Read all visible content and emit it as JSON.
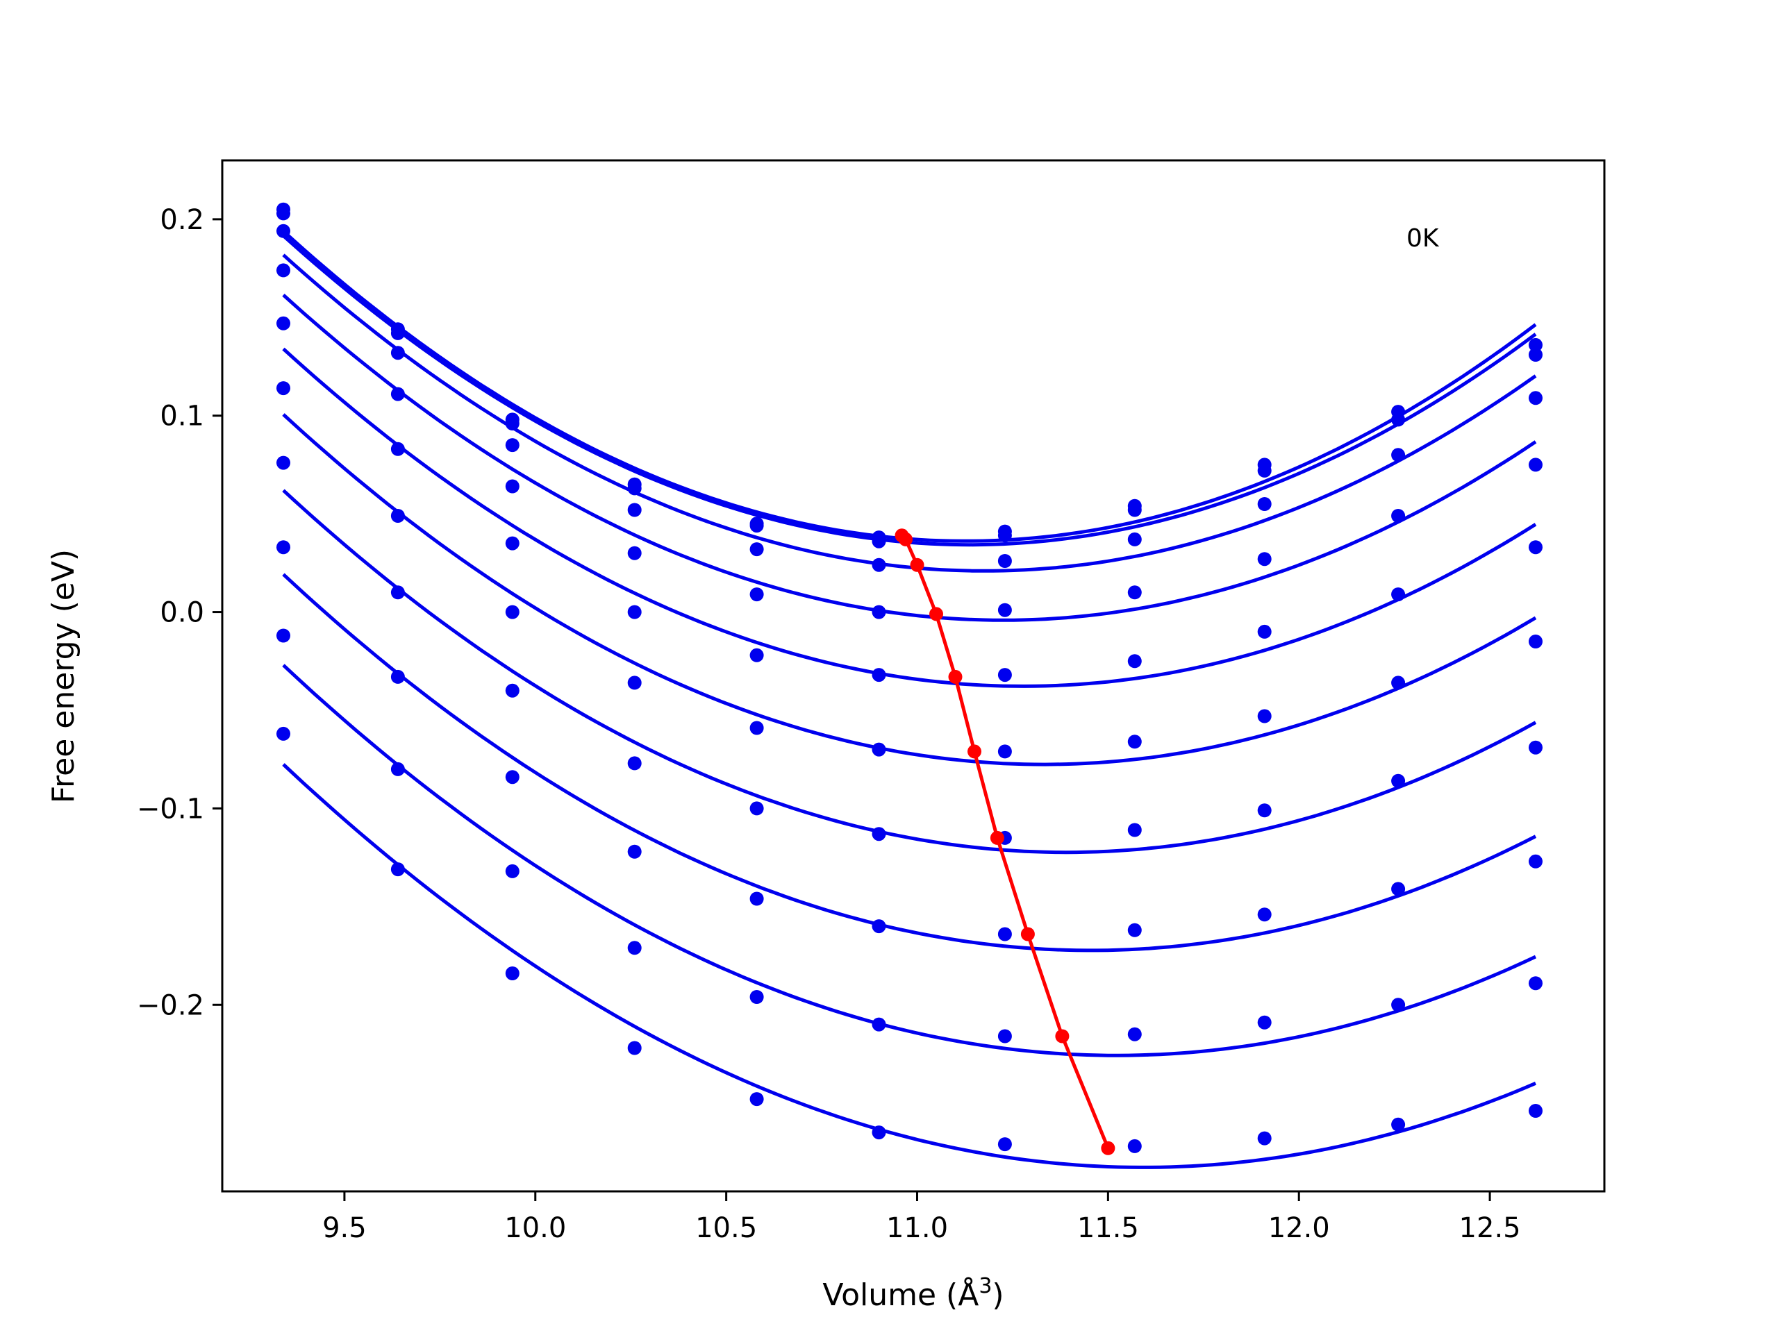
{
  "chart_data": {
    "type": "line",
    "title": "",
    "xlabel": "Volume (Å",
    "xlabel_sup": "3",
    "xlabel_close": ")",
    "ylabel": "Free energy (eV)",
    "annotation": "0K",
    "xlim": [
      9.18,
      12.8
    ],
    "ylim": [
      -0.295,
      0.23
    ],
    "xticks": [
      9.5,
      10.0,
      10.5,
      11.0,
      11.5,
      12.0,
      12.5
    ],
    "xtick_labels": [
      "9.5",
      "10.0",
      "10.5",
      "11.0",
      "11.5",
      "12.0",
      "12.5"
    ],
    "yticks": [
      -0.2,
      -0.1,
      0.0,
      0.1,
      0.2
    ],
    "ytick_labels": [
      "−0.2",
      "−0.1",
      "0.0",
      "0.1",
      "0.2"
    ],
    "grid": false,
    "legend": "none",
    "colors": {
      "curves": "#0000ee",
      "minima": "#ff0000"
    },
    "x": [
      9.34,
      9.64,
      9.94,
      10.26,
      10.58,
      10.9,
      11.23,
      11.57,
      11.91,
      12.26,
      12.62
    ],
    "series": [
      {
        "values": [
          0.205,
          0.144,
          0.098,
          0.065,
          0.045,
          0.038,
          0.041,
          0.054,
          0.075,
          0.102,
          0.136
        ],
        "min": [
          10.96,
          0.039
        ]
      },
      {
        "values": [
          0.203,
          0.142,
          0.096,
          0.063,
          0.044,
          0.036,
          0.039,
          0.052,
          0.072,
          0.098,
          0.131
        ],
        "min": [
          10.97,
          0.037
        ]
      },
      {
        "values": [
          0.194,
          0.132,
          0.085,
          0.052,
          0.032,
          0.024,
          0.026,
          0.037,
          0.055,
          0.08,
          0.109
        ],
        "min": [
          11.0,
          0.024
        ]
      },
      {
        "values": [
          0.174,
          0.111,
          0.064,
          0.03,
          0.009,
          0.0,
          0.001,
          0.01,
          0.027,
          0.049,
          0.075
        ],
        "min": [
          11.05,
          -0.001
        ]
      },
      {
        "values": [
          0.147,
          0.083,
          0.035,
          0.0,
          -0.022,
          -0.032,
          -0.032,
          -0.025,
          -0.01,
          0.009,
          0.033
        ],
        "min": [
          11.1,
          -0.033
        ]
      },
      {
        "values": [
          0.114,
          0.049,
          0.0,
          -0.036,
          -0.059,
          -0.07,
          -0.071,
          -0.066,
          -0.053,
          -0.036,
          -0.015
        ],
        "min": [
          11.15,
          -0.071
        ]
      },
      {
        "values": [
          0.076,
          0.01,
          -0.04,
          -0.077,
          -0.1,
          -0.113,
          -0.115,
          -0.111,
          -0.101,
          -0.086,
          -0.069
        ],
        "min": [
          11.21,
          -0.115
        ]
      },
      {
        "values": [
          0.033,
          -0.033,
          -0.084,
          -0.122,
          -0.146,
          -0.16,
          -0.164,
          -0.162,
          -0.154,
          -0.141,
          -0.127
        ],
        "min": [
          11.29,
          -0.164
        ]
      },
      {
        "values": [
          -0.012,
          -0.08,
          -0.132,
          -0.171,
          -0.196,
          -0.21,
          -0.216,
          -0.215,
          -0.209,
          -0.2,
          -0.189
        ],
        "min": [
          11.38,
          -0.216
        ]
      },
      {
        "values": [
          -0.062,
          -0.131,
          -0.184,
          -0.222,
          -0.248,
          -0.265,
          -0.271,
          -0.272,
          -0.268,
          -0.261,
          -0.254
        ],
        "min": [
          11.5,
          -0.273
        ]
      }
    ]
  }
}
